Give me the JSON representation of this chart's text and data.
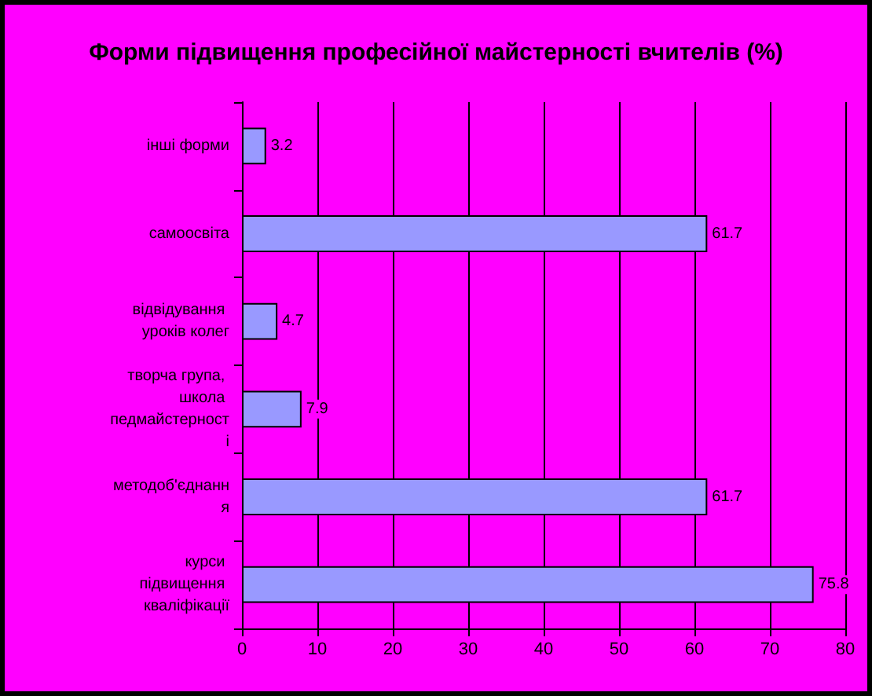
{
  "chart_data": {
    "type": "bar",
    "orientation": "horizontal",
    "title": "Форми підвищення професійної майстерності вчителів (%)",
    "categories": [
      "інші форми",
      "самоосвіта",
      "відвідування уроків колег",
      "творча група, школа педмайстерності",
      "методоб'єднання",
      "курси підвищення кваліфікації"
    ],
    "values": [
      3.2,
      61.7,
      4.7,
      7.9,
      61.7,
      75.8
    ],
    "color": "#9999ff",
    "xlim": [
      0,
      80
    ],
    "xticks": [
      0,
      10,
      20,
      30,
      40,
      50,
      60,
      70,
      80
    ],
    "grid": "x",
    "data_labels": true
  }
}
